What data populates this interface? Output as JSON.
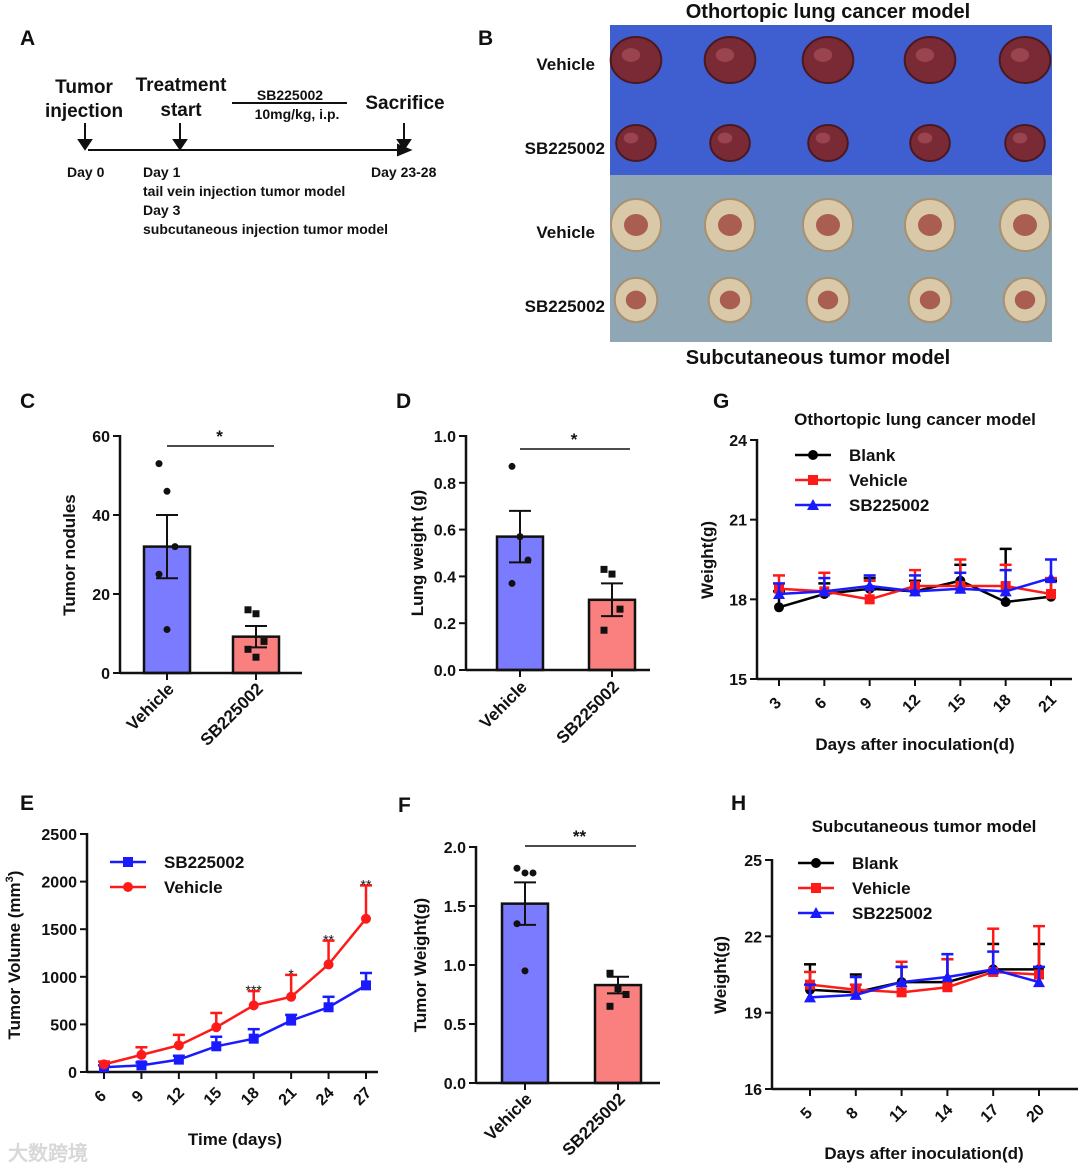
{
  "panel_letters": {
    "A": "A",
    "B": "B",
    "C": "C",
    "D": "D",
    "E": "E",
    "F": "F",
    "G": "G",
    "H": "H"
  },
  "timeline": {
    "tumor_injection": [
      "Tumor",
      "injection"
    ],
    "treatment_start": [
      "Treatment",
      "start"
    ],
    "drug": "SB225002",
    "dose": "10mg/kg, i.p.",
    "sacrifice": "Sacrifice",
    "day0": "Day 0",
    "day1": "Day 1",
    "day1_note": "tail vein injection tumor model",
    "day3": "Day 3",
    "day3_note": "subcutaneous injection tumor model",
    "day_end": "Day 23-28"
  },
  "photos": {
    "top_title": "Othortopic lung cancer model",
    "bottom_title": "Subcutaneous tumor model",
    "row_labels": [
      "Vehicle",
      "SB225002",
      "Vehicle",
      "SB225002"
    ],
    "colors": {
      "lung_bg": "#3f5fd0",
      "subq_bg": "#8fa6b5",
      "lung": "#7a2a34",
      "subq": "#d9c9a8",
      "subq_core": "#9a3a35"
    }
  },
  "colors": {
    "vehicle_bar": "#7b7bff",
    "sb_bar": "#fa7f7f",
    "blank": "#000000",
    "vehicle_line": "#ff1a1a",
    "sb_line": "#1a1aff"
  },
  "watermark": "大数跨境",
  "chart_data": [
    {
      "id": "C",
      "type": "bar",
      "categories": [
        "Vehicle",
        "SB225002"
      ],
      "values": [
        32,
        9.2
      ],
      "sem": [
        8,
        2.7
      ],
      "points": [
        [
          53,
          46,
          32,
          25,
          11
        ],
        [
          16,
          15,
          8,
          6,
          4
        ]
      ],
      "ylabel": "Tumor nodules",
      "ylim": [
        0,
        60
      ],
      "yticks": [
        "0",
        "20",
        "40",
        "60"
      ],
      "significance": "*"
    },
    {
      "id": "D",
      "type": "bar",
      "categories": [
        "Vehicle",
        "SB225002"
      ],
      "values": [
        0.57,
        0.3
      ],
      "sem": [
        0.11,
        0.07
      ],
      "points": [
        [
          0.87,
          0.57,
          0.47,
          0.37
        ],
        [
          0.43,
          0.41,
          0.26,
          0.17
        ]
      ],
      "ylabel": "Lung weight (g)",
      "ylim": [
        0,
        1.0
      ],
      "yticks": [
        "0.0",
        "0.2",
        "0.4",
        "0.6",
        "0.8",
        "1.0"
      ],
      "significance": "*"
    },
    {
      "id": "F",
      "type": "bar",
      "categories": [
        "Vehicle",
        "SB225002"
      ],
      "values": [
        1.52,
        0.83
      ],
      "sem": [
        0.18,
        0.07
      ],
      "points": [
        [
          1.82,
          1.78,
          1.78,
          1.35,
          0.95
        ],
        [
          0.93,
          0.8,
          0.75,
          0.65
        ]
      ],
      "ylabel": "Tumor Weight(g)",
      "ylim": [
        0,
        2.0
      ],
      "yticks": [
        "0.0",
        "0.5",
        "1.0",
        "1.5",
        "2.0"
      ],
      "significance": "**"
    },
    {
      "id": "E",
      "type": "line",
      "x": [
        6,
        9,
        12,
        15,
        18,
        21,
        24,
        27
      ],
      "xticks": [
        "6",
        "9",
        "12",
        "15",
        "18",
        "21",
        "24",
        "27"
      ],
      "xlim": [
        6,
        27
      ],
      "series": [
        {
          "name": "SB225002",
          "marker": "square",
          "color_key": "sb_line",
          "values": [
            50,
            70,
            130,
            270,
            350,
            540,
            680,
            910
          ],
          "err": [
            20,
            30,
            40,
            100,
            100,
            60,
            110,
            130
          ]
        },
        {
          "name": "Vehicle",
          "marker": "circle",
          "color_key": "vehicle_line",
          "values": [
            80,
            180,
            280,
            470,
            700,
            790,
            1130,
            1610
          ],
          "err": [
            30,
            80,
            110,
            150,
            150,
            230,
            250,
            350
          ]
        }
      ],
      "annotations": [
        {
          "x": 18,
          "text": "***"
        },
        {
          "x": 21,
          "text": "*"
        },
        {
          "x": 24,
          "text": "**"
        },
        {
          "x": 27,
          "text": "**"
        }
      ],
      "title": "",
      "xlabel": "Time (days)",
      "ylabel": "Tumor Volume (mm",
      "ylabel_sup": "3",
      "ylabel_end": ")",
      "ylim": [
        0,
        2500
      ],
      "yticks": [
        "0",
        "500",
        "1000",
        "1500",
        "2000",
        "2500"
      ],
      "legend": "top-left"
    },
    {
      "id": "G",
      "type": "line",
      "x": [
        3,
        6,
        9,
        12,
        15,
        18,
        21
      ],
      "xticks": [
        "3",
        "6",
        "9",
        "12",
        "15",
        "18",
        "21"
      ],
      "xlim": [
        3,
        21
      ],
      "series": [
        {
          "name": "Blank",
          "marker": "circle",
          "color_key": "blank",
          "values": [
            17.7,
            18.2,
            18.4,
            18.3,
            18.7,
            17.9,
            18.1
          ],
          "err": [
            0.6,
            0.4,
            0.4,
            0.4,
            0.6,
            2.0,
            0.6
          ]
        },
        {
          "name": "Vehicle",
          "marker": "square",
          "color_key": "vehicle_line",
          "values": [
            18.4,
            18.3,
            18.0,
            18.5,
            18.5,
            18.5,
            18.2
          ],
          "err": [
            0.5,
            0.7,
            0.7,
            0.6,
            1.0,
            0.8,
            0.6
          ]
        },
        {
          "name": "SB225002",
          "marker": "triangle",
          "color_key": "sb_line",
          "values": [
            18.2,
            18.3,
            18.5,
            18.3,
            18.4,
            18.3,
            18.8
          ],
          "err": [
            0.4,
            0.5,
            0.4,
            0.6,
            0.6,
            0.8,
            0.7
          ]
        }
      ],
      "title": "Othortopic lung cancer model",
      "xlabel": "Days after inoculation(d)",
      "ylabel": "Weight(g)",
      "ylim": [
        15,
        24
      ],
      "yticks": [
        "15",
        "18",
        "21",
        "24"
      ],
      "legend": "top-left"
    },
    {
      "id": "H",
      "type": "line",
      "x": [
        5,
        8,
        11,
        14,
        17,
        20
      ],
      "xticks": [
        "5",
        "8",
        "11",
        "14",
        "17",
        "20"
      ],
      "xlim": [
        5,
        20
      ],
      "series": [
        {
          "name": "Blank",
          "marker": "circle",
          "color_key": "blank",
          "values": [
            19.9,
            19.8,
            20.2,
            20.2,
            20.7,
            20.7
          ],
          "err": [
            1.0,
            0.7,
            0.6,
            0.9,
            1.0,
            1.0
          ]
        },
        {
          "name": "Vehicle",
          "marker": "square",
          "color_key": "vehicle_line",
          "values": [
            20.1,
            19.9,
            19.8,
            20.0,
            20.6,
            20.5
          ],
          "err": [
            0.5,
            0.2,
            1.2,
            1.1,
            1.7,
            1.9
          ]
        },
        {
          "name": "SB225002",
          "marker": "triangle",
          "color_key": "sb_line",
          "values": [
            19.6,
            19.7,
            20.2,
            20.4,
            20.7,
            20.2
          ],
          "err": [
            0.5,
            0.7,
            0.6,
            0.9,
            0.7,
            0.6
          ]
        }
      ],
      "title": "Subcutaneous tumor model",
      "xlabel": "Days after inoculation(d)",
      "ylabel": "Weight(g)",
      "ylim": [
        16,
        25
      ],
      "yticks": [
        "16",
        "19",
        "22",
        "25"
      ],
      "legend": "top-left"
    }
  ]
}
